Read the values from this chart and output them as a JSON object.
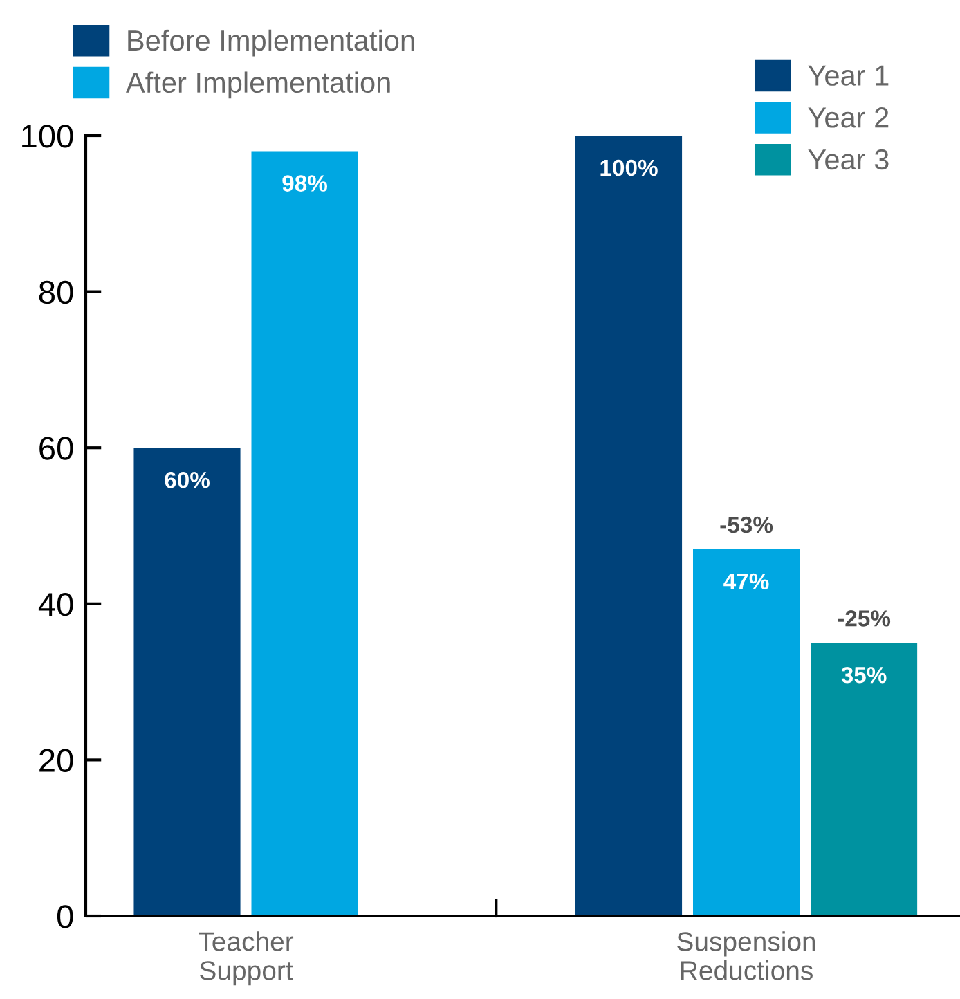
{
  "chart_data": {
    "type": "bar",
    "categories": [
      "Teacher\nSupport",
      "Suspension\nReductions"
    ],
    "series": [
      {
        "name": "Before Implementation",
        "color": "#00427a",
        "values": [
          60,
          null
        ],
        "value_labels": [
          "60%",
          null
        ]
      },
      {
        "name": "After Implementation",
        "color": "#00a7e2",
        "values": [
          98,
          null
        ],
        "value_labels": [
          "98%",
          null
        ]
      },
      {
        "name": "Year 1",
        "color": "#00427a",
        "values": [
          null,
          100
        ],
        "value_labels": [
          null,
          "100%"
        ]
      },
      {
        "name": "Year 2",
        "color": "#00a7e2",
        "values": [
          null,
          47
        ],
        "value_labels": [
          null,
          "47%"
        ]
      },
      {
        "name": "Year 3",
        "color": "#0092a0",
        "values": [
          null,
          35
        ],
        "value_labels": [
          null,
          "35%"
        ]
      }
    ],
    "annotations": [
      "-53%",
      "-25%"
    ],
    "ylim": [
      0,
      100
    ],
    "yticks": [
      0,
      20,
      40,
      60,
      80,
      100
    ],
    "grid": false,
    "legend": "top"
  }
}
